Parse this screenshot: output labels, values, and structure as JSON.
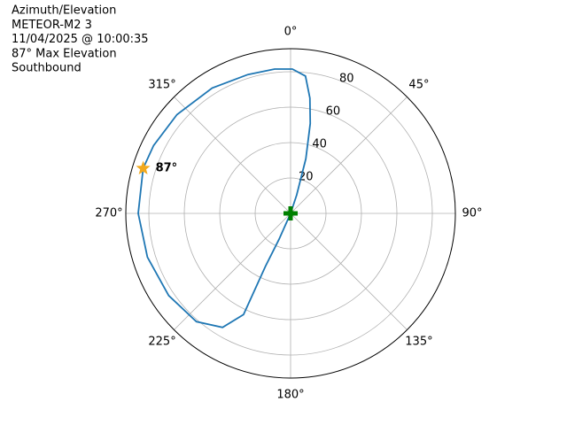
{
  "chart_data": {
    "type": "polar",
    "title_lines": [
      "Azimuth/Elevation",
      "METEOR-M2 3",
      "11/04/2025 @ 10:00:35",
      "87° Max Elevation",
      "Southbound"
    ],
    "theta_direction": "clockwise",
    "theta_zero": "N",
    "thetaticks": [
      {
        "value": 0,
        "label": "0°"
      },
      {
        "value": 45,
        "label": "45°"
      },
      {
        "value": 90,
        "label": "90°"
      },
      {
        "value": 135,
        "label": "135°"
      },
      {
        "value": 180,
        "label": "180°"
      },
      {
        "value": 225,
        "label": "225°"
      },
      {
        "value": 270,
        "label": "270°"
      },
      {
        "value": 315,
        "label": "315°"
      }
    ],
    "rlim": [
      0,
      93
    ],
    "rticks": [
      20,
      40,
      60,
      80
    ],
    "grid": true,
    "series": [
      {
        "color": "#1f77b4",
        "theta": [
          0,
          18.4,
          15.6,
          12.3,
          9.5,
          6.2,
          0.7,
          353.7,
          342.9,
          328,
          311,
          296.4,
          287,
          270,
          253,
          236,
          221,
          210.8,
          204.9,
          205.4,
          204,
          0
        ],
        "r": [
          0,
          11,
          32,
          52,
          66,
          78,
          81.5,
          82,
          82,
          83.5,
          85,
          86.3,
          87,
          86,
          84.5,
          83,
          81,
          75,
          63,
          33,
          16,
          0
        ]
      }
    ],
    "max_point": {
      "theta": 287,
      "r": 87,
      "label": "87°",
      "color": "#f2a91d"
    },
    "start_point": {
      "theta": 0,
      "r": 0,
      "color": "#008000"
    }
  }
}
